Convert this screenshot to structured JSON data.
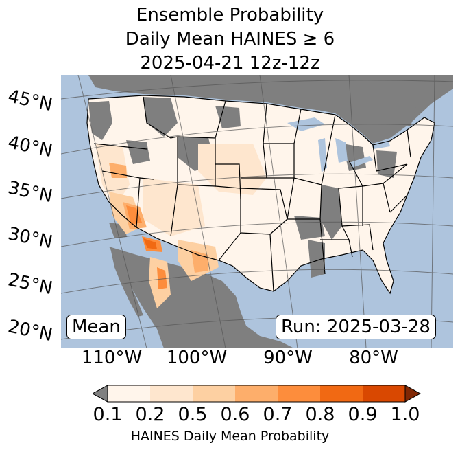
{
  "title": {
    "line1": "Ensemble Probability",
    "line2": "Daily Mean HAINES ≥ 6",
    "line3": "2025-04-21 12z-12z"
  },
  "map": {
    "lat_labels": [
      "45°N",
      "40°N",
      "35°N",
      "30°N",
      "25°N",
      "20°N"
    ],
    "lon_labels": [
      "110°W",
      "100°W",
      "90°W",
      "80°W"
    ],
    "stat_label": "Mean",
    "run_label": "Run: 2025-03-28",
    "colors": {
      "ocean": "#aec4dd",
      "missing": "#7f7f7f",
      "bins": [
        "#fff5eb",
        "#fee6ce",
        "#fdd0a2",
        "#fdae6b",
        "#fd8d3c",
        "#f16913",
        "#d94801"
      ],
      "below": "#808080",
      "above": "#7f2704"
    }
  },
  "colorbar": {
    "ticks": [
      "0.1",
      "0.2",
      "0.5",
      "0.6",
      "0.7",
      "0.8",
      "0.9",
      "1.0"
    ],
    "label": "HAINES Daily Mean Probability"
  }
}
